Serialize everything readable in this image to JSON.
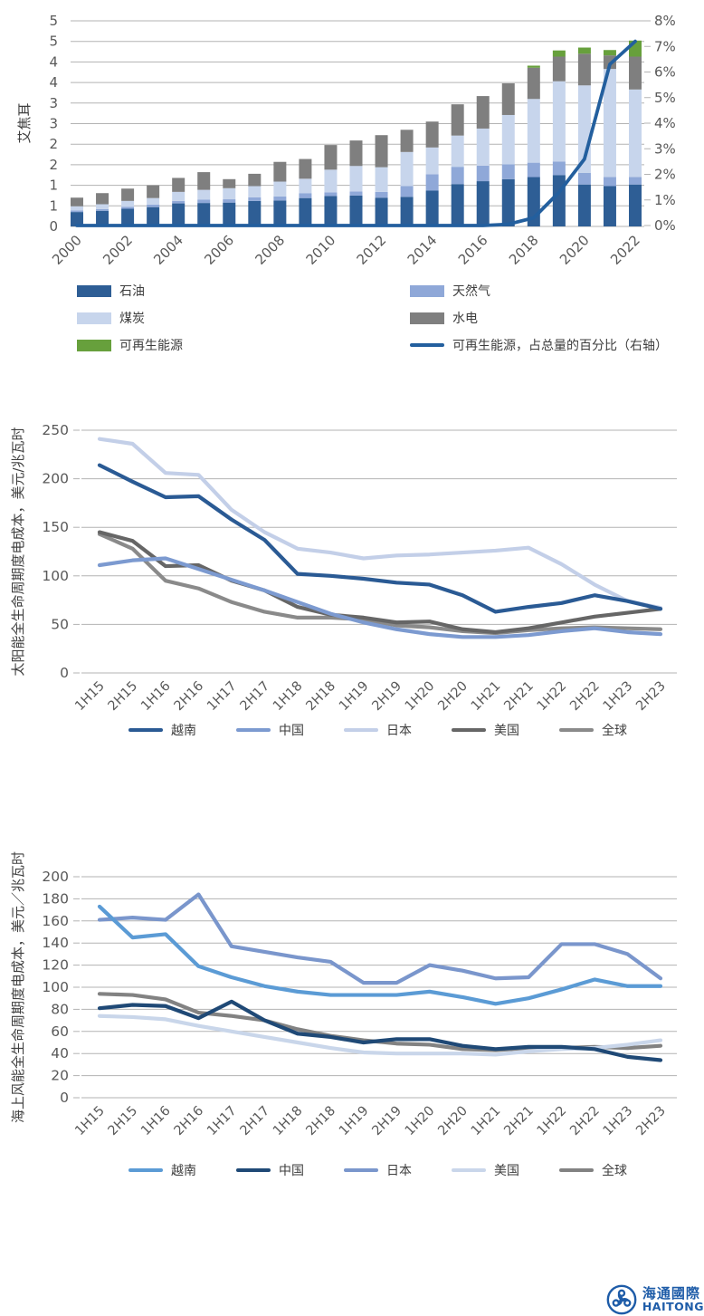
{
  "page": {
    "background": "#ffffff"
  },
  "chart_data": [
    {
      "type": "bar",
      "subtype": "stacked-bars-with-right-axis-line",
      "ylabel_left": "艾焦耳",
      "categories": [
        2000,
        2001,
        2002,
        2003,
        2004,
        2005,
        2006,
        2007,
        2008,
        2009,
        2010,
        2011,
        2012,
        2013,
        2014,
        2015,
        2016,
        2017,
        2018,
        2019,
        2020,
        2021,
        2022
      ],
      "x_axis_tick_labels": [
        "2000",
        "2002",
        "2004",
        "2006",
        "2008",
        "2010",
        "2012",
        "2014",
        "2016",
        "2018",
        "2020",
        "2022"
      ],
      "left_axis": {
        "min": 0,
        "max": 5,
        "gridline_step": 0.5,
        "tick_labels_top_to_bottom": [
          "5",
          "5",
          "4",
          "4",
          "3",
          "3",
          "2",
          "2",
          "1",
          "1",
          "0"
        ]
      },
      "right_axis": {
        "min": 0,
        "max": 8,
        "tick_labels_top_to_bottom": [
          "8%",
          "7%",
          "6%",
          "5%",
          "4%",
          "3%",
          "2%",
          "1%",
          "0%"
        ]
      },
      "grid": true,
      "legend_position": "bottom",
      "series": [
        {
          "name": "石油",
          "type": "bar",
          "color": "#2E5E95",
          "values": [
            0.35,
            0.38,
            0.43,
            0.47,
            0.56,
            0.57,
            0.58,
            0.62,
            0.63,
            0.69,
            0.74,
            0.75,
            0.7,
            0.72,
            0.87,
            1.03,
            1.1,
            1.15,
            1.2,
            1.25,
            1.02,
            0.98,
            1.02
          ]
        },
        {
          "name": "天然气",
          "type": "bar",
          "color": "#8FA8D8",
          "values": [
            0.04,
            0.04,
            0.05,
            0.06,
            0.06,
            0.08,
            0.08,
            0.09,
            0.1,
            0.12,
            0.09,
            0.1,
            0.14,
            0.26,
            0.4,
            0.42,
            0.38,
            0.36,
            0.35,
            0.33,
            0.28,
            0.22,
            0.18
          ]
        },
        {
          "name": "煤炭",
          "type": "bar",
          "color": "#C7D5EC",
          "values": [
            0.1,
            0.12,
            0.14,
            0.16,
            0.22,
            0.24,
            0.27,
            0.27,
            0.36,
            0.35,
            0.55,
            0.62,
            0.6,
            0.83,
            0.65,
            0.76,
            0.9,
            1.2,
            1.55,
            1.95,
            2.13,
            2.63,
            2.13
          ]
        },
        {
          "name": "水电",
          "type": "bar",
          "color": "#7F7F7F",
          "values": [
            0.21,
            0.27,
            0.3,
            0.31,
            0.34,
            0.43,
            0.22,
            0.3,
            0.48,
            0.48,
            0.6,
            0.62,
            0.78,
            0.54,
            0.63,
            0.76,
            0.79,
            0.77,
            0.76,
            0.6,
            0.77,
            0.33,
            0.8
          ]
        },
        {
          "name": "可再生能源",
          "type": "bar",
          "color": "#67A03C",
          "values": [
            0,
            0,
            0,
            0,
            0,
            0,
            0,
            0,
            0,
            0,
            0,
            0,
            0,
            0,
            0,
            0,
            0,
            0,
            0.05,
            0.15,
            0.15,
            0.13,
            0.39
          ]
        },
        {
          "name": "可再生能源，占总量的百分比（右轴）",
          "type": "line",
          "axis": "right",
          "color": "#235F9E",
          "values": [
            0,
            0,
            0,
            0,
            0,
            0,
            0,
            0,
            0,
            0,
            0,
            0,
            0,
            0,
            0,
            0,
            0,
            0.05,
            0.3,
            1.3,
            2.6,
            6.3,
            7.2
          ]
        }
      ]
    },
    {
      "type": "line",
      "ylabel": "太阳能全生命周期度电成本，美元/兆瓦时",
      "x": [
        "1H15",
        "2H15",
        "1H16",
        "2H16",
        "1H17",
        "2H17",
        "1H18",
        "2H18",
        "1H19",
        "2H19",
        "1H20",
        "2H20",
        "1H21",
        "2H21",
        "1H22",
        "2H22",
        "1H23",
        "2H23"
      ],
      "y_axis": {
        "min": 0,
        "max": 250,
        "step": 50,
        "tick_labels_top_to_bottom": [
          "250",
          "200",
          "150",
          "100",
          "50",
          "0"
        ]
      },
      "grid": true,
      "legend_position": "bottom",
      "series": [
        {
          "name": "越南",
          "color": "#2A5A94",
          "values": [
            214,
            197,
            181,
            182,
            158,
            137,
            102,
            100,
            97,
            93,
            91,
            80,
            63,
            68,
            72,
            80,
            74,
            66
          ]
        },
        {
          "name": "中国",
          "color": "#7C9AD0",
          "values": [
            111,
            116,
            118,
            107,
            96,
            85,
            73,
            61,
            52,
            45,
            40,
            37,
            37,
            39,
            43,
            46,
            42,
            40
          ]
        },
        {
          "name": "日本",
          "color": "#C3CFE8",
          "values": [
            241,
            236,
            206,
            204,
            168,
            145,
            128,
            124,
            118,
            121,
            122,
            124,
            126,
            129,
            112,
            91,
            74,
            67
          ]
        },
        {
          "name": "美国",
          "color": "#666666",
          "values": [
            145,
            136,
            110,
            111,
            95,
            85,
            68,
            60,
            57,
            52,
            53,
            45,
            42,
            46,
            52,
            58,
            62,
            66
          ]
        },
        {
          "name": "全球",
          "color": "#8A8A8A",
          "values": [
            143,
            128,
            95,
            87,
            73,
            63,
            57,
            57,
            55,
            49,
            47,
            43,
            41,
            44,
            46,
            47,
            46,
            45
          ]
        }
      ]
    },
    {
      "type": "line",
      "ylabel": "海上风能全生命周期度电成本，美元／兆瓦时",
      "x": [
        "1H15",
        "2H15",
        "1H16",
        "2H16",
        "1H17",
        "2H17",
        "1H18",
        "2H18",
        "1H19",
        "2H19",
        "1H20",
        "2H20",
        "1H21",
        "2H21",
        "1H22",
        "2H22",
        "1H23",
        "2H23"
      ],
      "y_axis": {
        "min": 0,
        "max": 200,
        "step": 20,
        "tick_labels_top_to_bottom": [
          "200",
          "180",
          "160",
          "140",
          "120",
          "100",
          "80",
          "60",
          "40",
          "20",
          "0"
        ]
      },
      "grid": true,
      "legend_position": "bottom",
      "series": [
        {
          "name": "越南",
          "color": "#5B9BD5",
          "values": [
            173,
            145,
            148,
            119,
            109,
            101,
            96,
            93,
            93,
            93,
            96,
            91,
            85,
            90,
            98,
            107,
            101,
            101
          ]
        },
        {
          "name": "中国",
          "color": "#1F4976",
          "values": [
            81,
            84,
            83,
            72,
            87,
            70,
            58,
            55,
            50,
            53,
            53,
            47,
            44,
            46,
            46,
            44,
            37,
            34
          ]
        },
        {
          "name": "日本",
          "color": "#7A96CC",
          "values": [
            161,
            163,
            161,
            184,
            137,
            132,
            127,
            123,
            104,
            104,
            120,
            115,
            108,
            109,
            139,
            139,
            130,
            108
          ]
        },
        {
          "name": "美国",
          "color": "#C9D6EA",
          "values": [
            74,
            73,
            71,
            65,
            60,
            55,
            50,
            45,
            41,
            40,
            40,
            40,
            39,
            42,
            44,
            45,
            48,
            52
          ]
        },
        {
          "name": "全球",
          "color": "#828282",
          "values": [
            94,
            93,
            89,
            77,
            74,
            70,
            62,
            56,
            52,
            49,
            48,
            44,
            43,
            45,
            45,
            46,
            45,
            47
          ]
        }
      ]
    }
  ],
  "logo": {
    "name_cn": "海通國際",
    "name_en": "HAITONG",
    "color": "#1E5CA8"
  }
}
